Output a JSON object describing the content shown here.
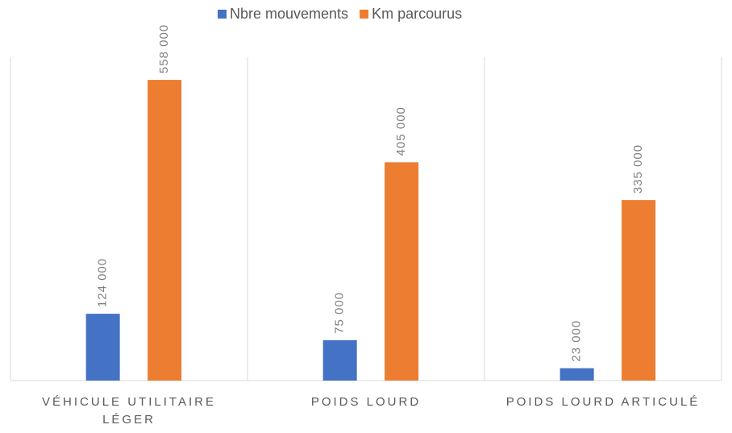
{
  "chart_data": {
    "type": "bar",
    "categories": [
      "VÉHICULE UTILITAIRE LÉGER",
      "POIDS LOURD",
      "POIDS LOURD ARTICULÉ"
    ],
    "series": [
      {
        "name": "Nbre mouvements",
        "color": "#4472c4",
        "values": [
          124000,
          75000,
          23000
        ],
        "value_labels": [
          "124 000",
          "75 000",
          "23 000"
        ]
      },
      {
        "name": "Km parcourus",
        "color": "#ed7d31",
        "values": [
          558000,
          405000,
          335000
        ],
        "value_labels": [
          "558 000",
          "405 000",
          "335 000"
        ]
      }
    ],
    "ylim": [
      0,
      600000
    ],
    "legend": "top"
  }
}
